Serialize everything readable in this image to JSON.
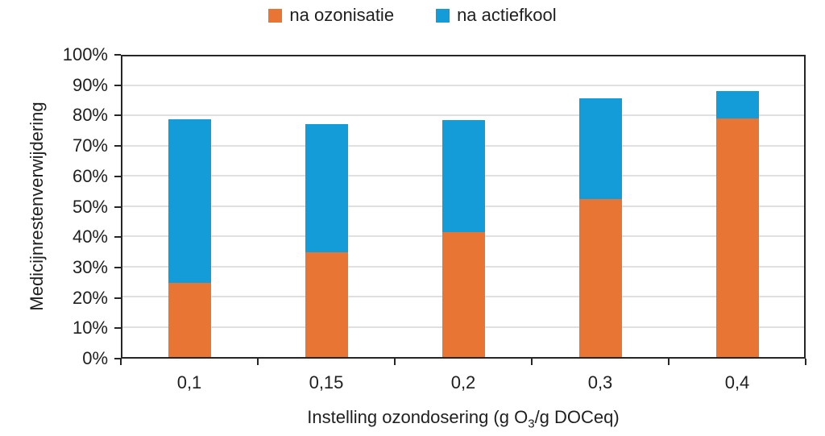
{
  "chart_data": {
    "type": "bar",
    "subtype": "stacked-vertical",
    "title": "",
    "categories": [
      "0,1",
      "0,15",
      "0,2",
      "0,3",
      "0,4"
    ],
    "series": [
      {
        "name": "na ozonisatie",
        "color": "#E87533",
        "values": [
          24.5,
          34.7,
          41.3,
          52.3,
          78.9
        ]
      },
      {
        "name": "na actiefkool",
        "color": "#149CD8",
        "values": [
          54.3,
          42.5,
          37.1,
          33.3,
          9.2
        ]
      }
    ],
    "stack_totals": [
      78.8,
      77.2,
      78.4,
      85.6,
      88.1
    ],
    "ylabel": "Medicijnrestenverwijdering",
    "xlabel_parts": {
      "prefix": "Instelling ozondosering (g O",
      "sub": "3",
      "suffix": "/g DOCeq)"
    },
    "ylim": [
      0,
      100
    ],
    "y_tick_step": 10,
    "y_tick_labels": [
      "0%",
      "10%",
      "20%",
      "30%",
      "40%",
      "50%",
      "60%",
      "70%",
      "80%",
      "90%",
      "100%"
    ],
    "grid": "horizontal",
    "legend_position": "top-center"
  },
  "colors": {
    "axis": "#262626",
    "gridline": "#E0E0E0",
    "text": "#1f1f1f",
    "background": "#FFFFFF"
  }
}
